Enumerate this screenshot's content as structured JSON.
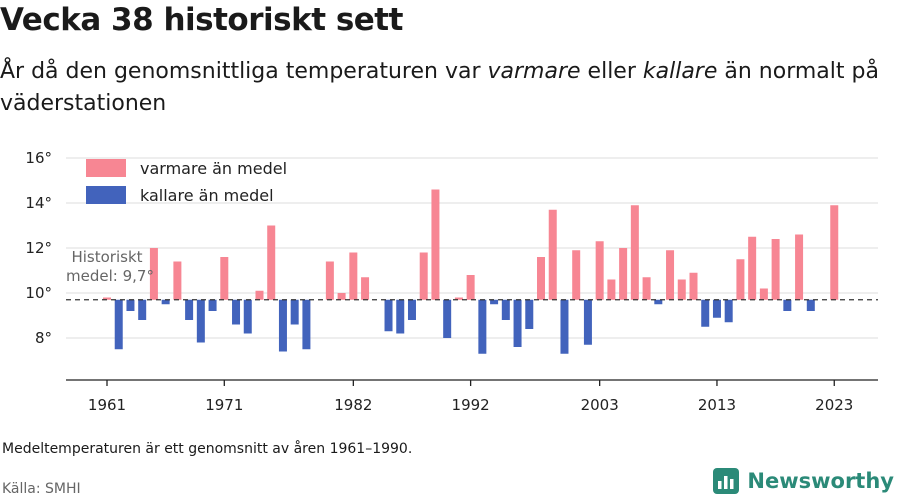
{
  "header": {
    "title": "Vecka 38 historiskt sett",
    "subtitle_part1": "År då den genomsnittliga temperaturen var ",
    "subtitle_em1": "varmare",
    "subtitle_part2": " eller ",
    "subtitle_em2": "kallare",
    "subtitle_part3": " än normalt på väderstationen"
  },
  "footer": {
    "note": "Medeltemperaturen är ett genomsnitt av åren 1961–1990.",
    "source": "Källa: SMHI",
    "brand": "Newsworthy",
    "brand_icon": "newsworthy-logo-icon"
  },
  "colors": {
    "warmer": "#f78693",
    "colder": "#4263bc",
    "brand": "#2b8a78"
  },
  "chart_data": {
    "type": "bar",
    "baseline": 9.7,
    "baseline_label_line1": "Historiskt",
    "baseline_label_line2": "medel: 9,7°",
    "ylim": [
      6.5,
      16.5
    ],
    "y_ticks": [
      8,
      10,
      12,
      14,
      16
    ],
    "y_tick_labels": [
      "8°",
      "10°",
      "12°",
      "14°",
      "16°"
    ],
    "x_ticks": [
      1961,
      1971,
      1982,
      1992,
      2003,
      2013,
      2023
    ],
    "grid": true,
    "legend_position": "top-left",
    "series": [
      {
        "name": "varmare än medel",
        "color": "#f78693"
      },
      {
        "name": "kallare än medel",
        "color": "#4263bc"
      }
    ],
    "x": [
      1961,
      1962,
      1963,
      1964,
      1965,
      1966,
      1967,
      1968,
      1969,
      1970,
      1971,
      1972,
      1973,
      1974,
      1975,
      1976,
      1977,
      1978,
      1979,
      1980,
      1981,
      1982,
      1983,
      1984,
      1985,
      1986,
      1987,
      1988,
      1989,
      1990,
      1991,
      1992,
      1993,
      1994,
      1995,
      1996,
      1997,
      1998,
      1999,
      2000,
      2001,
      2002,
      2003,
      2004,
      2005,
      2006,
      2007,
      2008,
      2009,
      2010,
      2011,
      2012,
      2013,
      2014,
      2015,
      2016,
      2017,
      2018,
      2019,
      2020,
      2021,
      2023
    ],
    "values": [
      9.8,
      7.5,
      9.2,
      8.8,
      12.0,
      9.5,
      11.4,
      8.8,
      7.8,
      9.2,
      11.6,
      8.6,
      8.2,
      10.1,
      13.0,
      7.4,
      8.6,
      7.5,
      null,
      11.4,
      10.0,
      11.8,
      10.7,
      null,
      8.3,
      8.2,
      8.8,
      11.8,
      14.6,
      8.0,
      9.8,
      10.8,
      7.3,
      9.5,
      8.8,
      7.6,
      8.4,
      11.6,
      13.7,
      7.3,
      11.9,
      7.7,
      12.3,
      10.6,
      12.0,
      13.9,
      10.7,
      9.5,
      11.9,
      10.6,
      10.9,
      8.5,
      8.9,
      8.7,
      11.5,
      12.5,
      10.2,
      12.4,
      9.2,
      12.6,
      9.2,
      13.9
    ]
  }
}
